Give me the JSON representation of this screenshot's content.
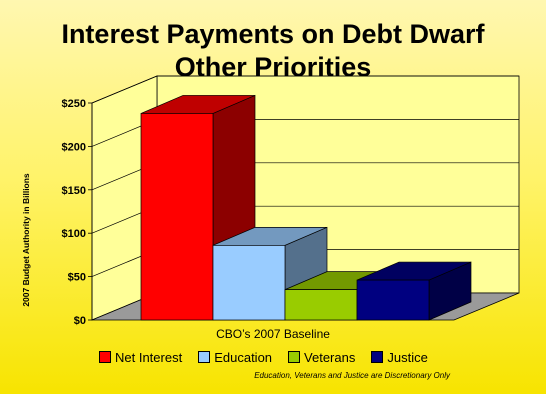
{
  "title_line1": "Interest Payments on Debt Dwarf",
  "title_line2": "Other Priorities",
  "footnote": "Education, Veterans and Justice are Discretionary Only",
  "chart_data": {
    "type": "bar",
    "title": "",
    "xlabel": "CBO’s 2007 Baseline",
    "ylabel": "2007 Budget Authority in Billions",
    "ylim": [
      0,
      250
    ],
    "yticks": [
      "$0",
      "$50",
      "$100",
      "$150",
      "$200",
      "$250"
    ],
    "grid": true,
    "legend_position": "bottom",
    "series": [
      {
        "name": "Net Interest",
        "values": [
          238
        ],
        "color": "#ff0000"
      },
      {
        "name": "Education",
        "values": [
          86
        ],
        "color": "#99ccff"
      },
      {
        "name": "Veterans",
        "values": [
          35
        ],
        "color": "#99cc00"
      },
      {
        "name": "Justice",
        "values": [
          46
        ],
        "color": "#000080"
      }
    ]
  }
}
